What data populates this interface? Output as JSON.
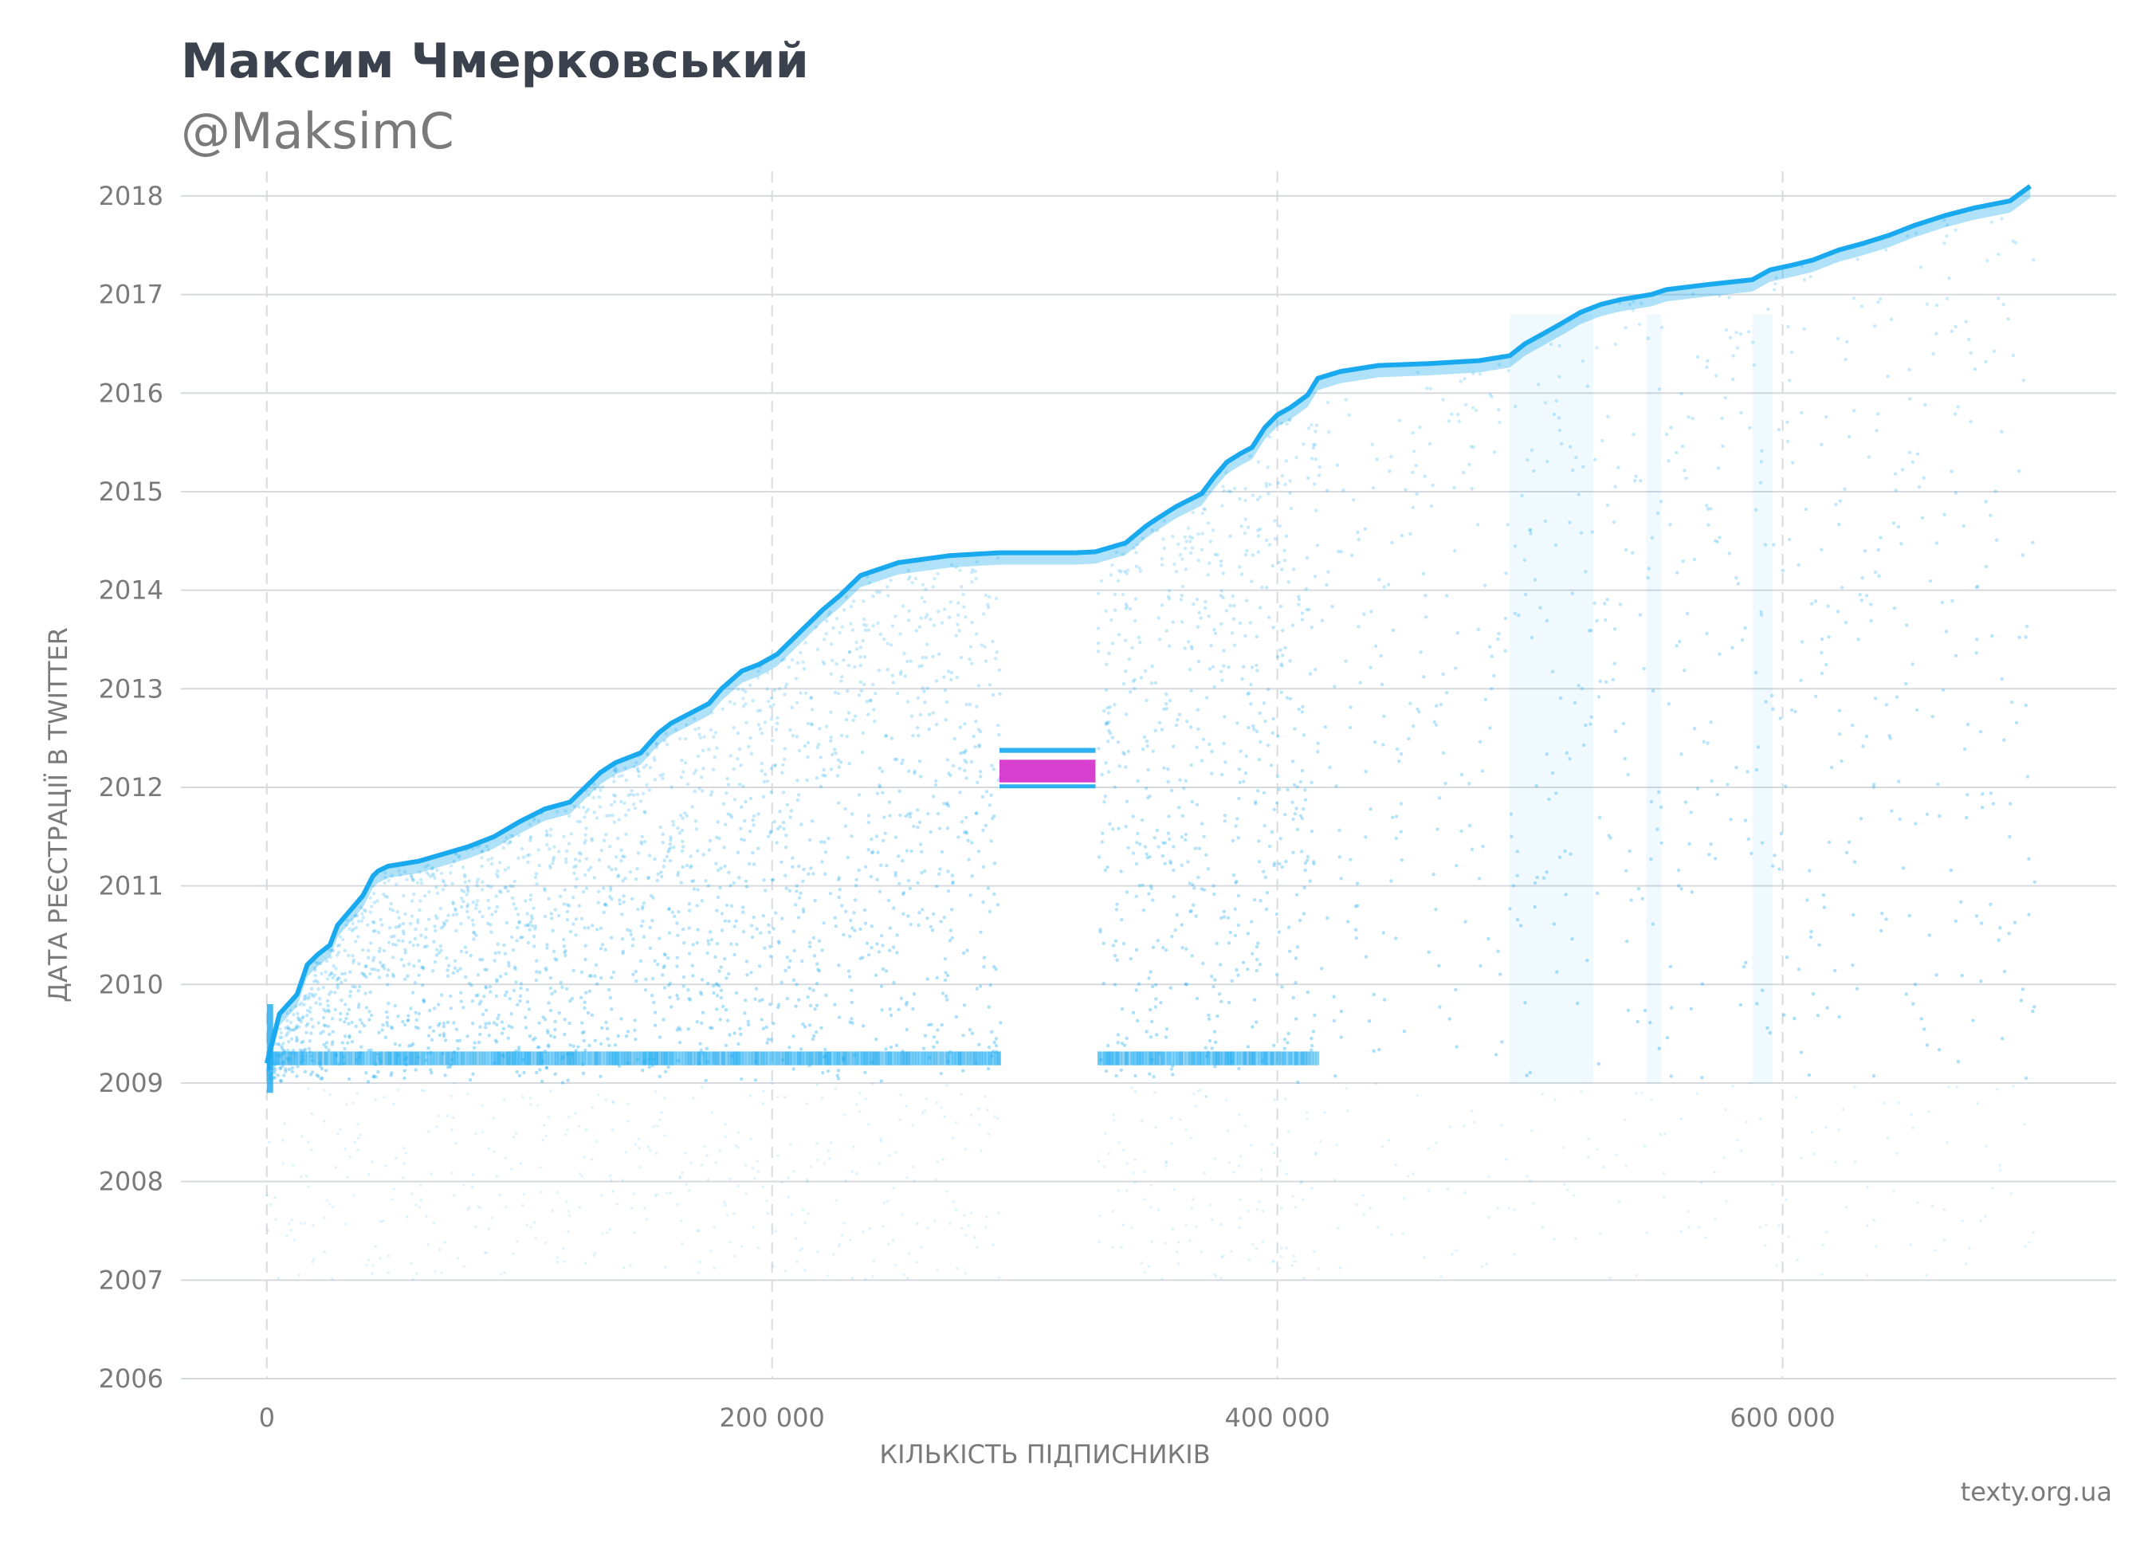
{
  "header": {
    "title": "Максим Чмерковський",
    "subtitle": "@MaksimC"
  },
  "footer": {
    "source": "texty.org.ua"
  },
  "colors": {
    "points": "#1aa9ef",
    "highlight": "#d11ec8",
    "grid": "#d6d9de",
    "text": "#7a7a7a",
    "title": "#3b414d"
  },
  "chart_data": {
    "type": "scatter",
    "xlabel": "КІЛЬКІСТЬ ПІДПИСНИКІВ",
    "ylabel": "ДАТА РЕЄСТРАЦІЇ В TWITTER",
    "xlim": [
      -34000,
      732000
    ],
    "ylim": [
      2006,
      2018.25
    ],
    "x_ticks": [
      0,
      200000,
      400000,
      600000
    ],
    "x_tick_labels": [
      "0",
      "200 000",
      "400 000",
      "600 000"
    ],
    "y_ticks": [
      2006,
      2007,
      2008,
      2009,
      2010,
      2011,
      2012,
      2013,
      2014,
      2015,
      2016,
      2017,
      2018
    ],
    "y_tick_labels": [
      "2006",
      "2007",
      "2008",
      "2009",
      "2010",
      "2011",
      "2012",
      "2013",
      "2014",
      "2015",
      "2016",
      "2017",
      "2018"
    ],
    "grid": {
      "x": "dashed",
      "y": "solid"
    },
    "series": [
      {
        "role": "upper envelope (newest account registration date per follower index)",
        "x": [
          0,
          5000,
          12000,
          16000,
          20000,
          25000,
          28000,
          38000,
          42000,
          44000,
          48000,
          60000,
          80000,
          90000,
          100000,
          110000,
          120000,
          126000,
          132000,
          138000,
          148000,
          155000,
          160000,
          175000,
          180000,
          188000,
          195000,
          202000,
          210000,
          220000,
          227000,
          235000,
          250000,
          270000,
          290000,
          300000,
          320000,
          328000,
          340000,
          348000,
          352000,
          360000,
          370000,
          375000,
          380000,
          385000,
          390000,
          395000,
          400000,
          405000,
          412000,
          416000,
          425000,
          440000,
          460000,
          480000,
          492000,
          498000,
          505000,
          512000,
          520000,
          528000,
          536000,
          548000,
          554000,
          570000,
          588000,
          595000,
          604000,
          612000,
          622000,
          632000,
          642000,
          652000,
          664000,
          676000,
          690000,
          698000
        ],
        "y": [
          2009.2,
          2009.7,
          2009.9,
          2010.2,
          2010.3,
          2010.4,
          2010.6,
          2010.9,
          2011.1,
          2011.15,
          2011.2,
          2011.25,
          2011.4,
          2011.5,
          2011.65,
          2011.78,
          2011.85,
          2012.0,
          2012.15,
          2012.25,
          2012.35,
          2012.55,
          2012.65,
          2012.85,
          2013.0,
          2013.18,
          2013.25,
          2013.35,
          2013.55,
          2013.8,
          2013.95,
          2014.15,
          2014.28,
          2014.35,
          2014.38,
          2014.38,
          2014.38,
          2014.39,
          2014.48,
          2014.65,
          2014.72,
          2014.85,
          2014.98,
          2015.15,
          2015.3,
          2015.38,
          2015.45,
          2015.65,
          2015.78,
          2015.85,
          2015.98,
          2016.15,
          2016.22,
          2016.28,
          2016.3,
          2016.33,
          2016.38,
          2016.5,
          2016.6,
          2016.7,
          2016.82,
          2016.9,
          2016.95,
          2017.0,
          2017.05,
          2017.1,
          2017.15,
          2017.25,
          2017.3,
          2017.35,
          2017.45,
          2017.52,
          2017.6,
          2017.7,
          2017.8,
          2017.88,
          2017.95,
          2018.1
        ]
      },
      {
        "role": "dense horizontal band",
        "y": 2009.25,
        "x_range": [
          0,
          416000
        ]
      },
      {
        "role": "gap with no points (x range)",
        "x_range": [
          290000,
          328000
        ]
      },
      {
        "role": "cluster inside gap",
        "color": "#1aa9ef",
        "x_range": [
          290000,
          328000
        ],
        "y_range": [
          2012.35,
          2012.4
        ]
      },
      {
        "role": "highlighted cluster inside gap",
        "color": "#d11ec8",
        "x_range": [
          290000,
          328000
        ],
        "y_range": [
          2012.05,
          2012.28
        ]
      }
    ]
  }
}
